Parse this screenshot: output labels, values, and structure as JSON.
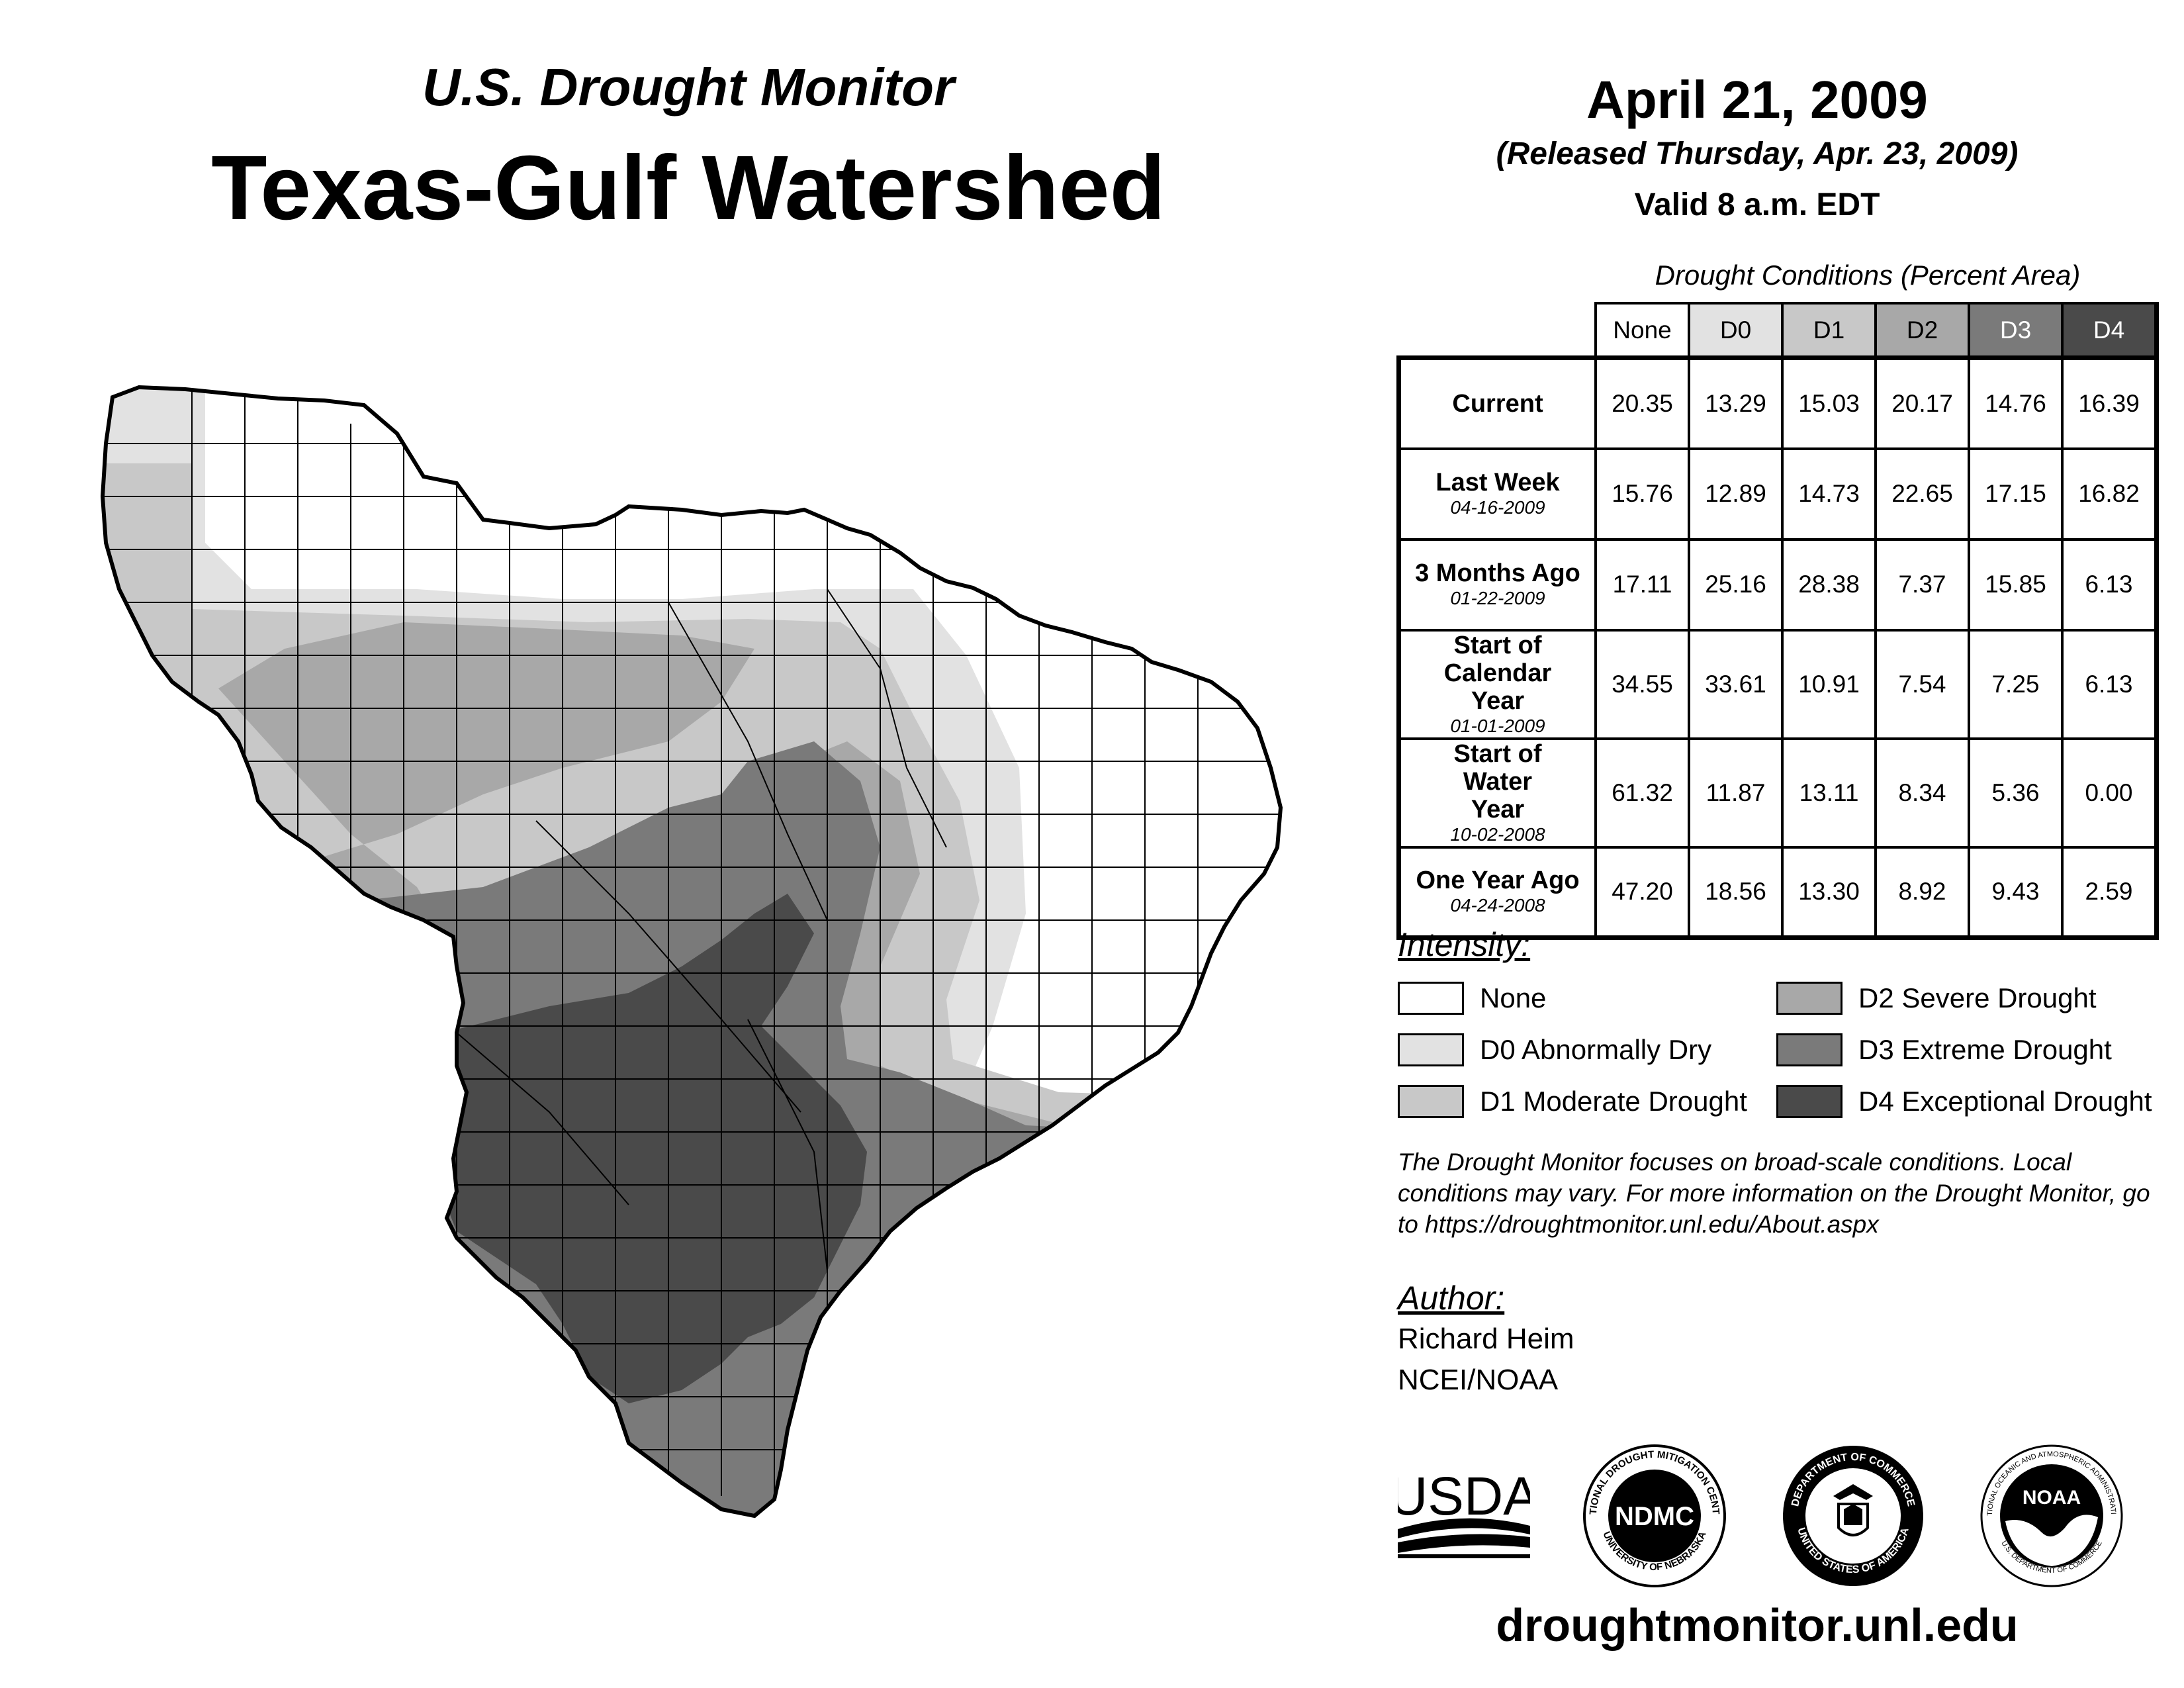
{
  "header": {
    "subtitle": "U.S. Drought Monitor",
    "title": "Texas-Gulf Watershed",
    "date": "April 21, 2009",
    "released": "(Released Thursday, Apr. 23, 2009)",
    "valid": "Valid 8 a.m. EDT"
  },
  "table": {
    "caption": "Drought Conditions (Percent Area)",
    "columns": [
      "None",
      "D0",
      "D1",
      "D2",
      "D3",
      "D4"
    ],
    "column_colors": [
      "#ffffff",
      "#e2e2e2",
      "#c8c8c8",
      "#a8a8a8",
      "#7a7a7a",
      "#4a4a4a"
    ],
    "rows": [
      {
        "label": "Current",
        "date": "",
        "values": [
          "20.35",
          "13.29",
          "15.03",
          "20.17",
          "14.76",
          "16.39"
        ]
      },
      {
        "label": "Last Week",
        "date": "04-16-2009",
        "values": [
          "15.76",
          "12.89",
          "14.73",
          "22.65",
          "17.15",
          "16.82"
        ]
      },
      {
        "label": "3 Months Ago",
        "date": "01-22-2009",
        "values": [
          "17.11",
          "25.16",
          "28.38",
          "7.37",
          "15.85",
          "6.13"
        ]
      },
      {
        "label": "Start of Calendar Year",
        "date": "01-01-2009",
        "values": [
          "34.55",
          "33.61",
          "10.91",
          "7.54",
          "7.25",
          "6.13"
        ]
      },
      {
        "label": "Start of Water Year",
        "date": "10-02-2008",
        "values": [
          "61.32",
          "11.87",
          "13.11",
          "8.34",
          "5.36",
          "0.00"
        ]
      },
      {
        "label": "One Year Ago",
        "date": "04-24-2008",
        "values": [
          "47.20",
          "18.56",
          "13.30",
          "8.92",
          "9.43",
          "2.59"
        ]
      }
    ]
  },
  "legend": {
    "heading": "Intensity:",
    "items": [
      {
        "label": "None",
        "color": "#ffffff"
      },
      {
        "label": "D0 Abnormally Dry",
        "color": "#e2e2e2"
      },
      {
        "label": "D1 Moderate Drought",
        "color": "#c8c8c8"
      },
      {
        "label": "D2 Severe Drought",
        "color": "#a8a8a8"
      },
      {
        "label": "D3 Extreme Drought",
        "color": "#7a7a7a"
      },
      {
        "label": "D4 Exceptional Drought",
        "color": "#4a4a4a"
      }
    ]
  },
  "note": "The Drought Monitor focuses on broad-scale conditions. Local conditions may vary. For more information on the Drought Monitor, go to https://droughtmonitor.unl.edu/About.aspx",
  "author": {
    "heading": "Author:",
    "name": "Richard Heim",
    "org": "NCEI/NOAA"
  },
  "logos": [
    {
      "name": "usda-logo",
      "text": "USDA"
    },
    {
      "name": "ndmc-logo",
      "text": "NDMC",
      "ring_top": "NATIONAL DROUGHT MITIGATION CENTER",
      "ring_bottom": "UNIVERSITY OF NEBRASKA"
    },
    {
      "name": "doc-logo",
      "ring_top": "DEPARTMENT OF COMMERCE",
      "ring_bottom": "UNITED STATES OF AMERICA"
    },
    {
      "name": "noaa-logo",
      "text": "NOAA",
      "ring_top": "NATIONAL OCEANIC AND ATMOSPHERIC ADMINISTRATION",
      "ring_bottom": "U.S. DEPARTMENT OF COMMERCE"
    }
  ],
  "website": "droughtmonitor.unl.edu"
}
